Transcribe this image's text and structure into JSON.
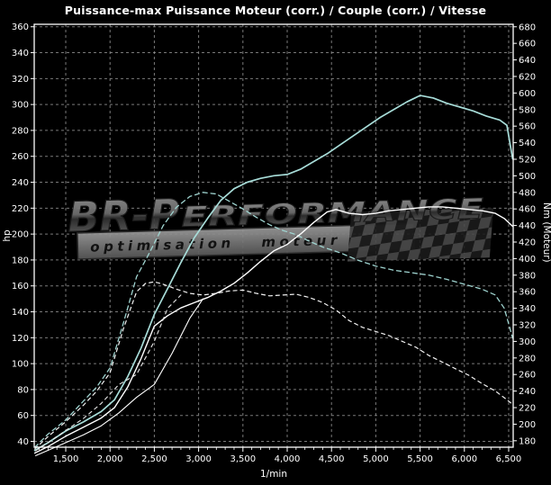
{
  "page": {
    "title": "Puissance-max Puissance Moteur (corr.) / Couple (corr.) / Vitesse"
  },
  "watermark": {
    "brand_big": "BR-P",
    "brand_rest": "ERFORMANCE",
    "tagline": "optimisation moteur"
  },
  "chart_data": {
    "type": "line",
    "title": "Puissance-max Puissance Moteur (corr.) / Couple (corr.) / Vitesse",
    "xlabel": "1/min",
    "ylabel_left": "hp",
    "ylabel_right": "Nm (Moteur)",
    "grid": true,
    "background": "#000000",
    "axis_color": "#ffffff",
    "grid_color": "#8f8f8f",
    "x_axis": {
      "min": 1144,
      "max": 6551,
      "tick_step": 500,
      "minor_tick_step": 100,
      "tick_values": [
        1500,
        2000,
        2500,
        3000,
        3500,
        4000,
        4500,
        5000,
        5500,
        6000,
        6500
      ],
      "tick_labels": [
        "1,500",
        "2,000",
        "2,500",
        "3,000",
        "3,500",
        "4,000",
        "4,500",
        "5,000",
        "5,500",
        "6,000",
        "6,500"
      ]
    },
    "left_axis": {
      "label": "hp",
      "tick_min": 40,
      "tick_max": 360,
      "tick_step": 20,
      "plot_min": 35.5,
      "plot_max": 361.9
    },
    "right_axis": {
      "label": "Nm (Moteur)",
      "tick_min": 180,
      "tick_max": 680,
      "tick_step": 20,
      "plot_min": 172.2,
      "plot_max": 683
    },
    "legend": "none",
    "series": [
      {
        "name": "puissance-corrigee-optimisee",
        "color": "#a7dcd8",
        "dash": "none",
        "width": 1.7,
        "axis": "hp",
        "points": [
          [
            1150,
            33
          ],
          [
            1300,
            39
          ],
          [
            1500,
            48
          ],
          [
            1700,
            55
          ],
          [
            1900,
            63
          ],
          [
            2050,
            72
          ],
          [
            2200,
            90
          ],
          [
            2350,
            112
          ],
          [
            2500,
            138
          ],
          [
            2650,
            158
          ],
          [
            2800,
            178
          ],
          [
            2950,
            197
          ],
          [
            3100,
            212
          ],
          [
            3250,
            226
          ],
          [
            3400,
            235
          ],
          [
            3550,
            240
          ],
          [
            3700,
            243
          ],
          [
            3850,
            245
          ],
          [
            4000,
            246
          ],
          [
            4150,
            250
          ],
          [
            4300,
            256
          ],
          [
            4450,
            262
          ],
          [
            4600,
            269
          ],
          [
            4750,
            276
          ],
          [
            4900,
            283
          ],
          [
            5050,
            290
          ],
          [
            5200,
            296
          ],
          [
            5350,
            302
          ],
          [
            5500,
            307
          ],
          [
            5650,
            305
          ],
          [
            5800,
            301
          ],
          [
            5950,
            298
          ],
          [
            6100,
            295
          ],
          [
            6250,
            291
          ],
          [
            6400,
            288
          ],
          [
            6480,
            284
          ],
          [
            6545,
            258
          ]
        ]
      },
      {
        "name": "couple-corrige-optimise",
        "color": "#9fd4d0",
        "dash": "5 4",
        "width": 1.3,
        "axis": "nm",
        "points": [
          [
            1150,
            172
          ],
          [
            1300,
            188
          ],
          [
            1500,
            205
          ],
          [
            1700,
            228
          ],
          [
            1850,
            245
          ],
          [
            2000,
            268
          ],
          [
            2150,
            322
          ],
          [
            2300,
            378
          ],
          [
            2450,
            408
          ],
          [
            2600,
            440
          ],
          [
            2750,
            462
          ],
          [
            2900,
            475
          ],
          [
            3050,
            480
          ],
          [
            3200,
            478
          ],
          [
            3350,
            469
          ],
          [
            3500,
            460
          ],
          [
            3650,
            450
          ],
          [
            3800,
            441
          ],
          [
            3950,
            434
          ],
          [
            4100,
            429
          ],
          [
            4250,
            421
          ],
          [
            4400,
            414
          ],
          [
            4600,
            407
          ],
          [
            4800,
            398
          ],
          [
            5000,
            391
          ],
          [
            5200,
            386
          ],
          [
            5400,
            383
          ],
          [
            5600,
            380
          ],
          [
            5800,
            375
          ],
          [
            6000,
            369
          ],
          [
            6200,
            363
          ],
          [
            6350,
            356
          ],
          [
            6450,
            340
          ],
          [
            6545,
            304
          ]
        ]
      },
      {
        "name": "puissance-corrigee-originale",
        "color": "#ffffff",
        "dash": "none",
        "width": 1.4,
        "axis": "hp",
        "points": [
          [
            1150,
            31
          ],
          [
            1300,
            36
          ],
          [
            1500,
            44
          ],
          [
            1700,
            51
          ],
          [
            1900,
            58
          ],
          [
            2050,
            66
          ],
          [
            2200,
            82
          ],
          [
            2350,
            104
          ],
          [
            2500,
            129
          ],
          [
            2650,
            137
          ],
          [
            2800,
            143
          ],
          [
            2950,
            147
          ],
          [
            3100,
            151
          ],
          [
            3250,
            156
          ],
          [
            3400,
            162
          ],
          [
            3550,
            170
          ],
          [
            3700,
            179
          ],
          [
            3850,
            187
          ],
          [
            4000,
            192
          ],
          [
            4150,
            200
          ],
          [
            4300,
            209
          ],
          [
            4450,
            217
          ],
          [
            4550,
            219
          ],
          [
            4700,
            216
          ],
          [
            4850,
            215
          ],
          [
            5000,
            216
          ],
          [
            5150,
            218
          ],
          [
            5300,
            219
          ],
          [
            5450,
            220
          ],
          [
            5600,
            221
          ],
          [
            5750,
            221
          ],
          [
            5900,
            220
          ],
          [
            6050,
            219
          ],
          [
            6200,
            218
          ],
          [
            6350,
            216
          ],
          [
            6450,
            212
          ],
          [
            6545,
            206
          ]
        ]
      },
      {
        "name": "couple-corrige-original",
        "color": "#f2f2f2",
        "dash": "4 4",
        "width": 1.2,
        "axis": "nm",
        "points": [
          [
            1150,
            170
          ],
          [
            1300,
            185
          ],
          [
            1500,
            203
          ],
          [
            1700,
            223
          ],
          [
            1850,
            240
          ],
          [
            2000,
            262
          ],
          [
            2150,
            315
          ],
          [
            2300,
            360
          ],
          [
            2400,
            370
          ],
          [
            2500,
            372
          ],
          [
            2600,
            369
          ],
          [
            2750,
            363
          ],
          [
            2900,
            358
          ],
          [
            3050,
            356
          ],
          [
            3200,
            358
          ],
          [
            3350,
            361
          ],
          [
            3500,
            362
          ],
          [
            3650,
            358
          ],
          [
            3800,
            355
          ],
          [
            3950,
            356
          ],
          [
            4100,
            357
          ],
          [
            4250,
            353
          ],
          [
            4400,
            347
          ],
          [
            4550,
            338
          ],
          [
            4700,
            325
          ],
          [
            4850,
            317
          ],
          [
            5000,
            312
          ],
          [
            5150,
            307
          ],
          [
            5300,
            300
          ],
          [
            5450,
            293
          ],
          [
            5600,
            283
          ],
          [
            5750,
            275
          ],
          [
            5900,
            267
          ],
          [
            6050,
            259
          ],
          [
            6200,
            249
          ],
          [
            6350,
            240
          ],
          [
            6450,
            232
          ],
          [
            6545,
            224
          ]
        ]
      },
      {
        "name": "trace-vitesse-secondaire-pleine",
        "color": "#ffffff",
        "dash": "none",
        "width": 1.1,
        "axis": "hp",
        "points": [
          [
            1160,
            29
          ],
          [
            1400,
            36
          ],
          [
            1700,
            45
          ],
          [
            1900,
            52
          ],
          [
            2100,
            62
          ],
          [
            2300,
            74
          ],
          [
            2500,
            84
          ],
          [
            2700,
            108
          ],
          [
            2900,
            135
          ],
          [
            3050,
            150
          ]
        ]
      },
      {
        "name": "trace-vitesse-secondaire-pointillee",
        "color": "#e8e8e8",
        "dash": "4 4",
        "width": 1.1,
        "axis": "nm",
        "points": [
          [
            1160,
            168
          ],
          [
            1400,
            185
          ],
          [
            1700,
            207
          ],
          [
            1900,
            225
          ],
          [
            2100,
            248
          ],
          [
            2300,
            260
          ],
          [
            2500,
            300
          ],
          [
            2650,
            340
          ],
          [
            2800,
            356
          ]
        ]
      }
    ]
  }
}
